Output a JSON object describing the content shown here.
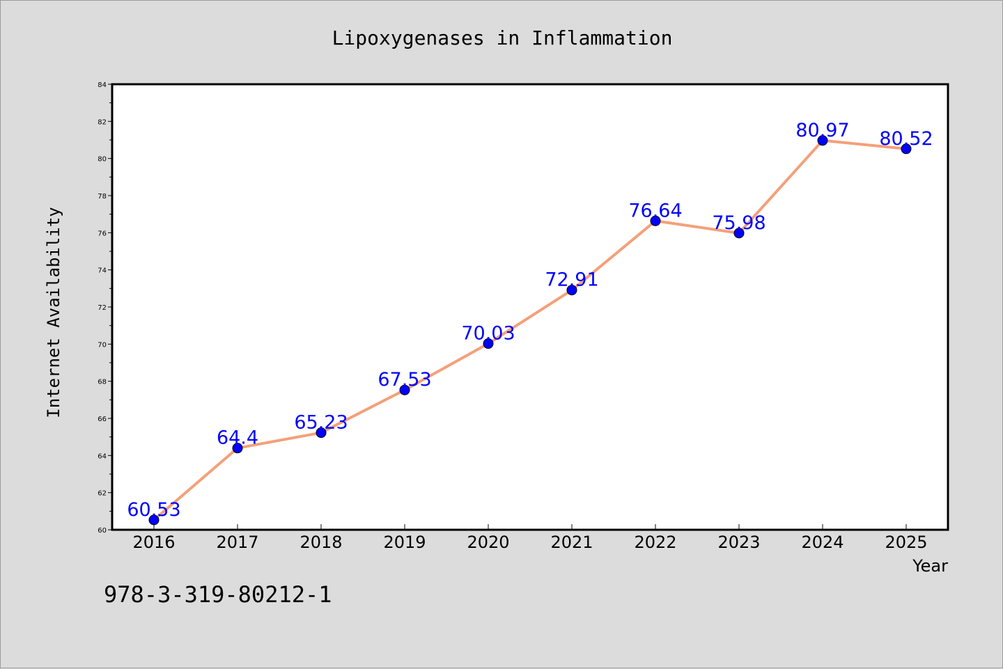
{
  "chart_data": {
    "type": "line",
    "title": "Lipoxygenases in Inflammation",
    "xlabel": "Year",
    "ylabel": "Internet Availability",
    "x": [
      "2016",
      "2017",
      "2018",
      "2019",
      "2020",
      "2021",
      "2022",
      "2023",
      "2024",
      "2025"
    ],
    "values": [
      60.53,
      64.4,
      65.23,
      67.53,
      70.03,
      72.91,
      76.64,
      75.98,
      80.97,
      80.52
    ],
    "data_labels": [
      "60.53",
      "64.4",
      "65.23",
      "67.53",
      "70.03",
      "72.91",
      "76.64",
      "75.98",
      "80.97",
      "80.52"
    ],
    "ylim": [
      60,
      84
    ],
    "yticks": [
      "60",
      "62",
      "64",
      "66",
      "68",
      "70",
      "72",
      "74",
      "76",
      "78",
      "80",
      "82",
      "84"
    ],
    "grid": false,
    "line_color": "#f4a07a",
    "marker_color": "#0000ff",
    "label_color": "#0000ff",
    "background": "#dcdcdc",
    "plot_background": "#ffffff"
  },
  "footnote": "978-3-319-80212-1"
}
